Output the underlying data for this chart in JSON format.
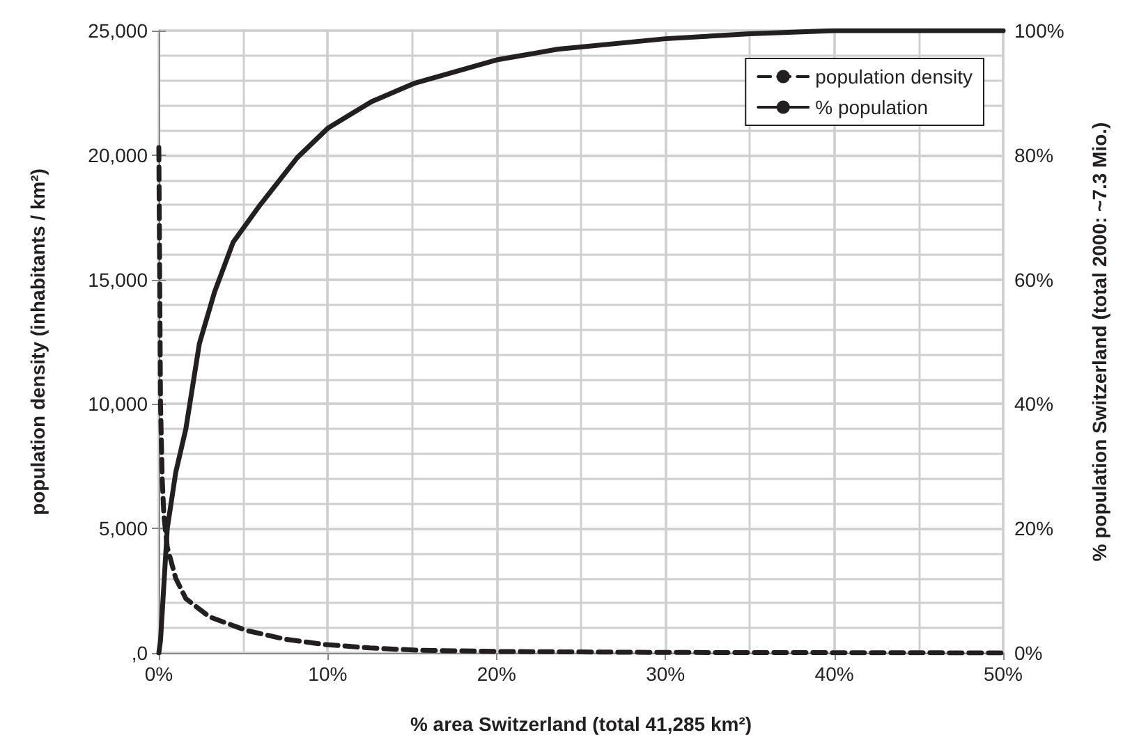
{
  "chart_data": {
    "type": "line",
    "xlabel": "% area Switzerland (total 41,285 km²)",
    "ylabel": "population density (inhabitants / km²)",
    "y2label": "% population Switzerland (total 2000: ~7.3 Mio.)",
    "xlim": [
      0,
      50
    ],
    "xticks": [
      {
        "value": 0,
        "label": "0%"
      },
      {
        "value": 5,
        "label": null
      },
      {
        "value": 10,
        "label": "10%"
      },
      {
        "value": 15,
        "label": null
      },
      {
        "value": 20,
        "label": "20%"
      },
      {
        "value": 25,
        "label": null
      },
      {
        "value": 30,
        "label": "30%"
      },
      {
        "value": 35,
        "label": null
      },
      {
        "value": 40,
        "label": "40%"
      },
      {
        "value": 45,
        "label": null
      },
      {
        "value": 50,
        "label": "50%"
      }
    ],
    "ylim": [
      0,
      25000
    ],
    "yticks": [
      {
        "value": 0,
        "label": ",0"
      },
      {
        "value": 1000,
        "label": null
      },
      {
        "value": 2000,
        "label": null
      },
      {
        "value": 3000,
        "label": null
      },
      {
        "value": 4000,
        "label": null
      },
      {
        "value": 5000,
        "label": "5,000"
      },
      {
        "value": 6000,
        "label": null
      },
      {
        "value": 7000,
        "label": null
      },
      {
        "value": 8000,
        "label": null
      },
      {
        "value": 9000,
        "label": null
      },
      {
        "value": 10000,
        "label": "10,000"
      },
      {
        "value": 11000,
        "label": null
      },
      {
        "value": 12000,
        "label": null
      },
      {
        "value": 13000,
        "label": null
      },
      {
        "value": 14000,
        "label": null
      },
      {
        "value": 15000,
        "label": "15,000"
      },
      {
        "value": 16000,
        "label": null
      },
      {
        "value": 17000,
        "label": null
      },
      {
        "value": 18000,
        "label": null
      },
      {
        "value": 19000,
        "label": null
      },
      {
        "value": 20000,
        "label": "20,000"
      },
      {
        "value": 21000,
        "label": null
      },
      {
        "value": 22000,
        "label": null
      },
      {
        "value": 23000,
        "label": null
      },
      {
        "value": 24000,
        "label": null
      },
      {
        "value": 25000,
        "label": "25,000"
      }
    ],
    "y2lim": [
      0,
      100
    ],
    "y2ticks": [
      {
        "value": 0,
        "label": "0%"
      },
      {
        "value": 20,
        "label": "20%"
      },
      {
        "value": 40,
        "label": "40%"
      },
      {
        "value": 60,
        "label": "60%"
      },
      {
        "value": 80,
        "label": "80%"
      },
      {
        "value": 100,
        "label": "100%"
      }
    ],
    "grid": true,
    "legend": "top right",
    "marker": "none",
    "series": [
      {
        "name": "population density",
        "color": "#231f20",
        "line_style": "dashed",
        "x": [
          0,
          0.05,
          0.1,
          0.2,
          0.3,
          0.5,
          1,
          1.6,
          3,
          5.2,
          7.5,
          9.8,
          12.5,
          15.3,
          20,
          25,
          30,
          40,
          50
        ],
        "values": [
          20300,
          15000,
          10000,
          7000,
          5500,
          4250,
          3000,
          2180,
          1450,
          900,
          550,
          340,
          200,
          110,
          60,
          40,
          20,
          10,
          0
        ]
      },
      {
        "name": "% population",
        "color": "#231f20",
        "line_style": "solid",
        "axis": "y2",
        "x": [
          0,
          0.1,
          0.5,
          1,
          1.6,
          2.4,
          3.3,
          4.4,
          6,
          8.2,
          10,
          12.6,
          15.1,
          20,
          23.6,
          30,
          35,
          40,
          45,
          50
        ],
        "values": [
          0,
          2,
          20,
          29,
          36,
          49.7,
          58,
          66,
          72,
          79.6,
          84.3,
          88.6,
          91.5,
          95.3,
          97,
          98.7,
          99.5,
          100,
          100,
          100
        ]
      }
    ]
  }
}
